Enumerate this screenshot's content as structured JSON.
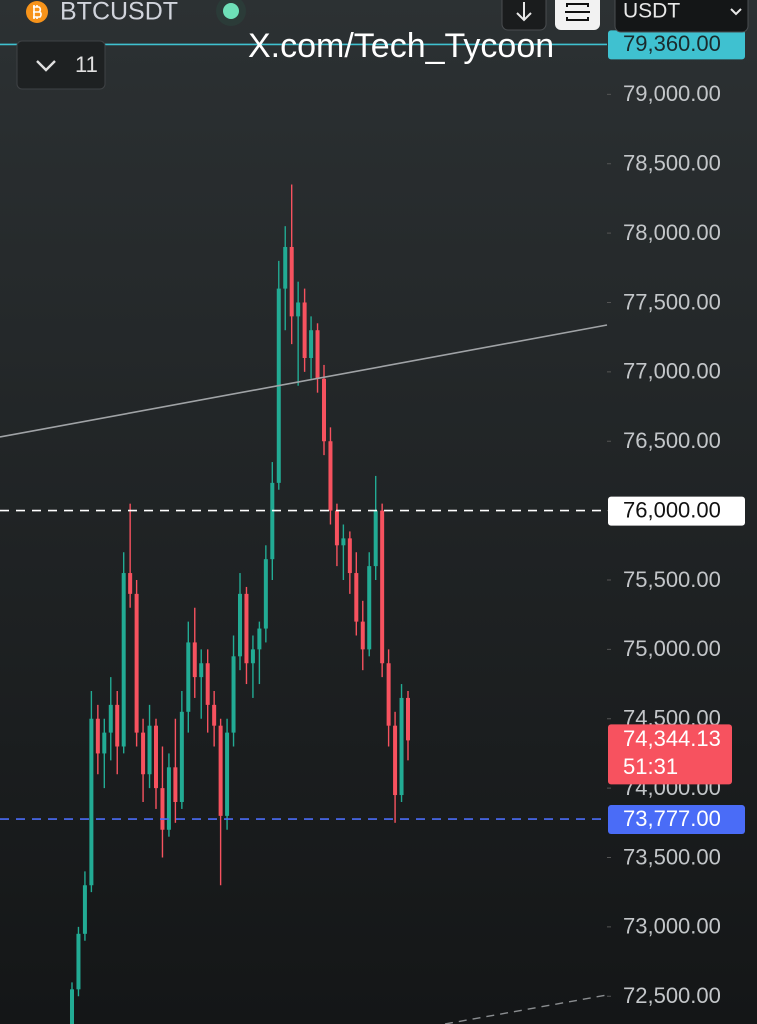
{
  "chart_data": {
    "type": "candlestick",
    "symbol": "BTCUSDT",
    "interval_count": "11",
    "currency": "USDT",
    "watermark": "X.com/Tech_Tycoon",
    "up_color": "#22ab94",
    "down_color": "#f7525f",
    "open": [
      72300,
      72550,
      72950,
      73300,
      74500,
      74250,
      74400,
      74600,
      74300,
      75550,
      75400,
      74400,
      74100,
      74450,
      74000,
      73700,
      74150,
      73900,
      74550,
      75050,
      74800,
      74900,
      74600,
      74450,
      73800,
      74400,
      74950,
      75400,
      74900,
      75000,
      75150,
      75650,
      76200,
      77600,
      77900,
      77400,
      77500,
      77100,
      77300,
      76950,
      76500,
      76000,
      75750,
      75800,
      75550,
      75200,
      75000,
      75600,
      76000,
      74900,
      74450,
      73950,
      74650
    ],
    "high": [
      72600,
      73000,
      73400,
      74700,
      74600,
      74500,
      74800,
      74700,
      75700,
      76050,
      75500,
      74500,
      74600,
      74500,
      74300,
      74250,
      74500,
      74700,
      75200,
      75300,
      75000,
      75000,
      74700,
      74500,
      74500,
      75100,
      75550,
      75450,
      75100,
      75200,
      75750,
      76350,
      77800,
      78050,
      78350,
      77650,
      77600,
      77400,
      77350,
      77050,
      76600,
      76050,
      75900,
      75850,
      75700,
      75350,
      75700,
      76250,
      76050,
      75000,
      74550,
      74750,
      74700
    ],
    "low": [
      72250,
      72500,
      72900,
      73250,
      74100,
      74000,
      74200,
      74100,
      74250,
      75300,
      74300,
      73900,
      74000,
      73850,
      73500,
      73650,
      73750,
      73850,
      74400,
      74650,
      74500,
      74400,
      74300,
      73300,
      73700,
      74300,
      74850,
      74750,
      74650,
      74750,
      75050,
      75500,
      76150,
      77300,
      77200,
      76900,
      77000,
      76950,
      76850,
      76400,
      75900,
      75600,
      75500,
      75400,
      75100,
      74850,
      74950,
      75500,
      74800,
      74300,
      73750,
      73900,
      74200
    ],
    "close": [
      72550,
      72950,
      73300,
      74500,
      74250,
      74400,
      74600,
      74300,
      75550,
      75400,
      74400,
      74100,
      74450,
      74000,
      73700,
      74150,
      73900,
      74550,
      75050,
      74800,
      74900,
      74600,
      74450,
      73800,
      74400,
      74950,
      75400,
      74900,
      75000,
      75150,
      75650,
      76200,
      77600,
      77900,
      77400,
      77500,
      77100,
      77300,
      76950,
      76500,
      76000,
      75750,
      75800,
      75550,
      75200,
      75000,
      75600,
      76000,
      74900,
      74450,
      73950,
      74650,
      74344.13
    ],
    "ylim": [
      72300,
      79680
    ],
    "yticks": [
      {
        "value": 72500,
        "label": "72,500.00"
      },
      {
        "value": 73000,
        "label": "73,000.00"
      },
      {
        "value": 73500,
        "label": "73,500.00"
      },
      {
        "value": 74000,
        "label": "74,000.00"
      },
      {
        "value": 74500,
        "label": "74,500.00"
      },
      {
        "value": 75000,
        "label": "75,000.00"
      },
      {
        "value": 75500,
        "label": "75,500.00"
      },
      {
        "value": 76000,
        "label": "76,000.00"
      },
      {
        "value": 76500,
        "label": "76,500.00"
      },
      {
        "value": 77000,
        "label": "77,000.00"
      },
      {
        "value": 77500,
        "label": "77,500.00"
      },
      {
        "value": 78000,
        "label": "78,000.00"
      },
      {
        "value": 78500,
        "label": "78,500.00"
      },
      {
        "value": 79000,
        "label": "79,000.00"
      }
    ],
    "price_lines": [
      {
        "value": 79360,
        "label": "79,360.00",
        "color": "#3fc1d0",
        "text_color": "#1b2a2c",
        "dashed": false
      },
      {
        "value": 76000,
        "label": "76,000.00",
        "color": "#ffffff",
        "text_color": "#111111",
        "dashed": true
      },
      {
        "value": 73777,
        "label": "73,777.00",
        "color": "#4a6cf7",
        "text_color": "#ffffff",
        "dashed": true
      }
    ],
    "last_price": {
      "value": 74344.13,
      "label": "74,344.13",
      "countdown": "51:31",
      "color": "#f7525f"
    }
  }
}
